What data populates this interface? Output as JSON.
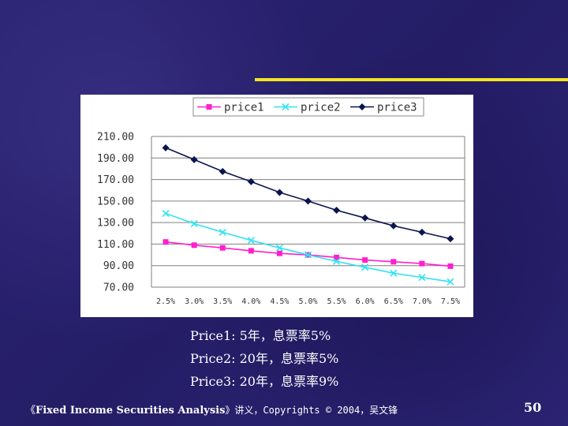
{
  "colors": {
    "background": "#2a2270",
    "accent": "#f2e51f",
    "price1": "#ff1fce",
    "price2": "#33e3f0",
    "price3": "#0a1550"
  },
  "chart_data": {
    "type": "line",
    "categories": [
      "2.5%",
      "3.0%",
      "3.5%",
      "4.0%",
      "4.5%",
      "5.0%",
      "5.5%",
      "6.0%",
      "6.5%",
      "7.0%",
      "7.5%"
    ],
    "y_tick_labels": [
      "210.00",
      "190.00",
      "170.00",
      "150.00",
      "130.00",
      "110.00",
      "90.00",
      "70.00"
    ],
    "ylim": [
      70,
      210
    ],
    "grid": "horizontal",
    "legend_position": "top",
    "series": [
      {
        "name": "price1",
        "marker": "square",
        "values": [
          112.0,
          109.0,
          106.5,
          103.8,
          101.4,
          100.0,
          97.6,
          95.2,
          93.6,
          91.9,
          89.5
        ]
      },
      {
        "name": "price2",
        "marker": "x",
        "values": [
          138.5,
          129.0,
          121.0,
          113.5,
          106.5,
          100.0,
          94.0,
          88.5,
          83.0,
          79.0,
          75.0
        ]
      },
      {
        "name": "price3",
        "marker": "diamond",
        "values": [
          199.5,
          188.5,
          177.5,
          168.0,
          158.0,
          150.0,
          141.5,
          134.3,
          127.0,
          121.0,
          115.0
        ]
      }
    ]
  },
  "notes": [
    "Price1:  5年，息票率5%",
    "Price2: 20年，息票率5%",
    "Price3: 20年，息票率9%"
  ],
  "footer": {
    "open_quote": "《",
    "course_title": "Fixed Income Securities Analysis",
    "rest": "》讲义，Copyrights © 2004，吴文锋"
  },
  "page_number": "50"
}
